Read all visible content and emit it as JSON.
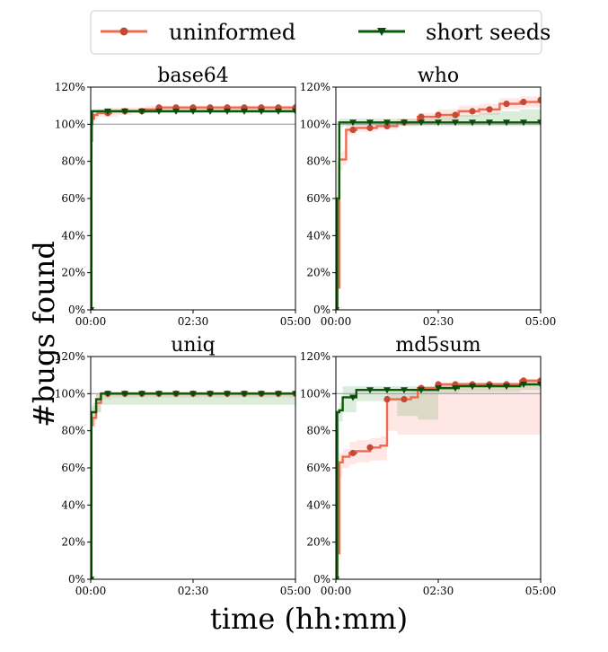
{
  "legend": {
    "items": [
      {
        "label": "uninformed",
        "color": "#f06a4f",
        "marker": "circle"
      },
      {
        "label": "short seeds",
        "color": "#0a5a0a",
        "marker": "triangle-down"
      }
    ]
  },
  "ylabel": "#bugs found",
  "xlabel": "time (hh:mm)",
  "chart_data": [
    {
      "type": "line",
      "title": "base64",
      "xlim": [
        0,
        300
      ],
      "ylim": [
        0,
        120
      ],
      "xticks": [
        0,
        150,
        300
      ],
      "xtick_labels": [
        "00:00",
        "02:30",
        "05:00"
      ],
      "yticks": [
        0,
        20,
        40,
        60,
        80,
        100,
        120
      ],
      "ytick_labels": [
        "0%",
        "20%",
        "40%",
        "60%",
        "80%",
        "100%",
        "120%"
      ],
      "reference_line": 100,
      "series": [
        {
          "name": "uninformed",
          "color": "#f06a4f",
          "x": [
            0,
            1,
            2,
            5,
            10,
            20,
            30,
            40,
            60,
            80,
            100,
            150,
            200,
            250,
            300
          ],
          "y": [
            0,
            91,
            103,
            105,
            106,
            106,
            107,
            107,
            107,
            108,
            109,
            109,
            109,
            109,
            109
          ],
          "band_low": [
            0,
            80,
            100,
            103,
            104,
            104,
            104,
            105,
            106,
            106,
            107,
            107,
            107,
            107,
            107
          ],
          "band_high": [
            0,
            100,
            106,
            107,
            108,
            108,
            109,
            109,
            109,
            110,
            110,
            110,
            110,
            110,
            110
          ]
        },
        {
          "name": "short seeds",
          "color": "#0a5a0a",
          "x": [
            0,
            1,
            2,
            10,
            50,
            100,
            150,
            200,
            250,
            300
          ],
          "y": [
            0,
            100,
            107,
            107,
            107,
            107,
            107,
            107,
            107,
            107
          ],
          "band_low": [
            0,
            95,
            106,
            106,
            106,
            106,
            106,
            106,
            106,
            106
          ],
          "band_high": [
            0,
            104,
            108,
            108,
            108,
            108,
            108,
            108,
            108,
            108
          ]
        }
      ]
    },
    {
      "type": "line",
      "title": "who",
      "xlim": [
        0,
        300
      ],
      "ylim": [
        0,
        120
      ],
      "xticks": [
        0,
        150,
        300
      ],
      "xtick_labels": [
        "00:00",
        "02:30",
        "05:00"
      ],
      "yticks": [
        0,
        20,
        40,
        60,
        80,
        100,
        120
      ],
      "ytick_labels": [
        "0%",
        "20%",
        "40%",
        "60%",
        "80%",
        "100%",
        "120%"
      ],
      "reference_line": 100,
      "series": [
        {
          "name": "uninformed",
          "color": "#f06a4f",
          "x": [
            0,
            2,
            5,
            10,
            15,
            30,
            60,
            90,
            120,
            150,
            180,
            210,
            240,
            270,
            300
          ],
          "y": [
            0,
            12,
            81,
            81,
            97,
            98,
            99,
            101,
            104,
            105,
            107,
            108,
            111,
            112,
            113
          ],
          "band_low": [
            0,
            5,
            75,
            78,
            94,
            96,
            97,
            99,
            101,
            102,
            104,
            105,
            108,
            109,
            110
          ],
          "band_high": [
            0,
            20,
            85,
            86,
            100,
            100,
            101,
            103,
            106,
            108,
            110,
            111,
            114,
            115,
            116
          ]
        },
        {
          "name": "short seeds",
          "color": "#0a5a0a",
          "x": [
            0,
            2,
            5,
            10,
            30,
            60,
            90,
            120,
            150,
            180,
            210,
            240,
            270,
            300
          ],
          "y": [
            0,
            60,
            101,
            101,
            101,
            101,
            101,
            101,
            101,
            101,
            101,
            101,
            101,
            101
          ],
          "band_low": [
            0,
            40,
            98,
            99,
            99,
            99,
            99,
            99,
            99,
            99,
            99,
            99,
            99,
            99
          ],
          "band_high": [
            0,
            80,
            103,
            103,
            103,
            103,
            103,
            103,
            104,
            105,
            106,
            107,
            108,
            110
          ]
        }
      ]
    },
    {
      "type": "line",
      "title": "uniq",
      "xlim": [
        0,
        300
      ],
      "ylim": [
        0,
        120
      ],
      "xticks": [
        0,
        150,
        300
      ],
      "xtick_labels": [
        "00:00",
        "02:30",
        "05:00"
      ],
      "yticks": [
        0,
        20,
        40,
        60,
        80,
        100,
        120
      ],
      "ytick_labels": [
        "0%",
        "20%",
        "40%",
        "60%",
        "80%",
        "100%",
        "120%"
      ],
      "reference_line": 100,
      "series": [
        {
          "name": "uninformed",
          "color": "#f06a4f",
          "x": [
            0,
            1,
            3,
            8,
            15,
            30,
            60,
            90,
            120,
            150,
            180,
            210,
            240,
            270,
            300
          ],
          "y": [
            0,
            83,
            87,
            95,
            100,
            100,
            100,
            100,
            100,
            100,
            100,
            100,
            100,
            100,
            100
          ],
          "band_low": [
            0,
            78,
            82,
            90,
            97,
            98,
            98,
            98,
            98,
            98,
            98,
            98,
            98,
            98,
            98
          ],
          "band_high": [
            0,
            88,
            93,
            100,
            101,
            101,
            101,
            101,
            101,
            101,
            101,
            101,
            101,
            101,
            101
          ]
        },
        {
          "name": "short seeds",
          "color": "#0a5a0a",
          "x": [
            0,
            1,
            3,
            8,
            15,
            30,
            60,
            90,
            120,
            150,
            180,
            210,
            240,
            270,
            300
          ],
          "y": [
            0,
            90,
            90,
            97,
            100,
            100,
            100,
            100,
            100,
            100,
            100,
            100,
            100,
            100,
            100
          ],
          "band_low": [
            0,
            85,
            86,
            90,
            94,
            94,
            94,
            94,
            94,
            94,
            94,
            94,
            94,
            94,
            94
          ],
          "band_high": [
            0,
            93,
            95,
            100,
            101,
            101,
            101,
            101,
            101,
            101,
            101,
            101,
            101,
            101,
            101
          ]
        }
      ]
    },
    {
      "type": "line",
      "title": "md5sum",
      "xlim": [
        0,
        300
      ],
      "ylim": [
        0,
        120
      ],
      "xticks": [
        0,
        150,
        300
      ],
      "xtick_labels": [
        "00:00",
        "02:30",
        "05:00"
      ],
      "yticks": [
        0,
        20,
        40,
        60,
        80,
        100,
        120
      ],
      "ytick_labels": [
        "0%",
        "20%",
        "40%",
        "60%",
        "80%",
        "100%",
        "120%"
      ],
      "reference_line": 100,
      "series": [
        {
          "name": "uninformed",
          "color": "#f06a4f",
          "x": [
            0,
            2,
            5,
            10,
            20,
            30,
            50,
            65,
            75,
            90,
            110,
            120,
            150,
            180,
            210,
            240,
            270,
            300
          ],
          "y": [
            0,
            14,
            63,
            66,
            68,
            69,
            71,
            72,
            97,
            97,
            98,
            103,
            105,
            105,
            105,
            105,
            107,
            107
          ],
          "band_low": [
            0,
            5,
            55,
            60,
            62,
            63,
            64,
            64,
            80,
            78,
            78,
            78,
            78,
            78,
            78,
            78,
            78,
            82
          ],
          "band_high": [
            0,
            25,
            68,
            70,
            74,
            75,
            76,
            77,
            100,
            100,
            101,
            104,
            106,
            106,
            106,
            106,
            108,
            108
          ]
        },
        {
          "name": "short seeds",
          "color": "#0a5a0a",
          "x": [
            0,
            2,
            5,
            10,
            20,
            30,
            60,
            90,
            120,
            150,
            180,
            210,
            240,
            270,
            300
          ],
          "y": [
            0,
            90,
            91,
            98,
            98,
            102,
            102,
            102,
            102,
            103,
            104,
            104,
            104,
            105,
            105
          ],
          "band_low": [
            0,
            60,
            85,
            90,
            90,
            96,
            96,
            88,
            86,
            100,
            101,
            101,
            101,
            102,
            102
          ],
          "band_high": [
            0,
            92,
            95,
            104,
            104,
            104,
            104,
            104,
            104,
            105,
            106,
            106,
            106,
            107,
            107
          ]
        }
      ]
    }
  ]
}
